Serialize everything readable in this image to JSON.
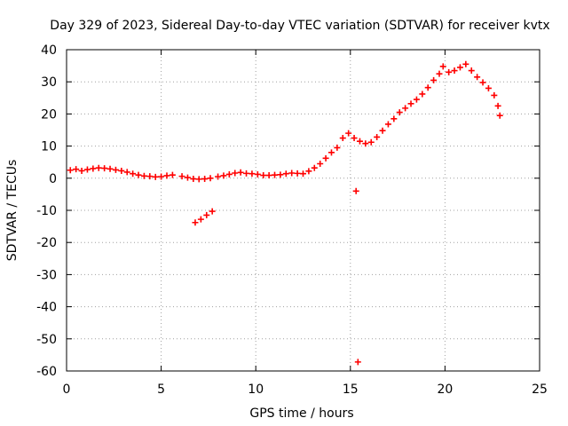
{
  "chart_data": {
    "type": "scatter",
    "title": "Day 329 of 2023, Sidereal Day-to-day VTEC variation (SDTVAR) for receiver kvtx",
    "xlabel": "GPS time / hours",
    "ylabel": "SDTVAR / TECUs",
    "xlim": [
      0,
      25
    ],
    "ylim": [
      -60,
      40
    ],
    "xticks": [
      "0",
      "5",
      "10",
      "15",
      "20",
      "25"
    ],
    "yticks": [
      "40",
      "30",
      "20",
      "10",
      "0",
      "-10",
      "-20",
      "-30",
      "-40",
      "-50",
      "-60"
    ],
    "grid": true,
    "marker": "+",
    "series": [
      {
        "name": "SDTVAR",
        "color": "#ff0000",
        "points": [
          [
            0.2,
            2.5
          ],
          [
            0.5,
            2.8
          ],
          [
            0.8,
            2.3
          ],
          [
            1.1,
            2.7
          ],
          [
            1.4,
            3.0
          ],
          [
            1.7,
            3.2
          ],
          [
            2.0,
            3.1
          ],
          [
            2.3,
            2.9
          ],
          [
            2.6,
            2.6
          ],
          [
            2.9,
            2.3
          ],
          [
            3.2,
            1.9
          ],
          [
            3.5,
            1.4
          ],
          [
            3.8,
            1.0
          ],
          [
            4.1,
            0.7
          ],
          [
            4.4,
            0.6
          ],
          [
            4.7,
            0.4
          ],
          [
            5.0,
            0.5
          ],
          [
            5.3,
            0.8
          ],
          [
            5.6,
            1.0
          ],
          [
            6.1,
            0.6
          ],
          [
            6.4,
            0.2
          ],
          [
            6.7,
            -0.2
          ],
          [
            7.0,
            -0.3
          ],
          [
            7.3,
            -0.2
          ],
          [
            7.6,
            0.0
          ],
          [
            6.8,
            -13.8
          ],
          [
            7.1,
            -12.8
          ],
          [
            7.4,
            -11.5
          ],
          [
            7.7,
            -10.3
          ],
          [
            8.0,
            0.5
          ],
          [
            8.3,
            0.8
          ],
          [
            8.6,
            1.2
          ],
          [
            8.9,
            1.6
          ],
          [
            9.2,
            1.8
          ],
          [
            9.5,
            1.5
          ],
          [
            9.8,
            1.4
          ],
          [
            10.1,
            1.2
          ],
          [
            10.4,
            0.9
          ],
          [
            10.7,
            0.9
          ],
          [
            11.0,
            1.0
          ],
          [
            11.3,
            1.1
          ],
          [
            11.6,
            1.4
          ],
          [
            11.9,
            1.6
          ],
          [
            12.2,
            1.5
          ],
          [
            12.5,
            1.4
          ],
          [
            12.8,
            2.2
          ],
          [
            13.1,
            3.2
          ],
          [
            13.4,
            4.5
          ],
          [
            13.7,
            6.2
          ],
          [
            14.0,
            8.0
          ],
          [
            14.3,
            9.5
          ],
          [
            14.6,
            12.5
          ],
          [
            14.9,
            14.0
          ],
          [
            15.2,
            12.5
          ],
          [
            15.5,
            11.5
          ],
          [
            15.8,
            10.8
          ],
          [
            16.1,
            11.2
          ],
          [
            16.4,
            12.8
          ],
          [
            16.7,
            14.8
          ],
          [
            17.0,
            16.8
          ],
          [
            17.3,
            18.5
          ],
          [
            17.6,
            20.5
          ],
          [
            17.9,
            21.8
          ],
          [
            18.2,
            23.2
          ],
          [
            18.5,
            24.5
          ],
          [
            18.8,
            26.2
          ],
          [
            19.1,
            28.2
          ],
          [
            19.4,
            30.5
          ],
          [
            19.7,
            32.5
          ],
          [
            19.9,
            34.8
          ],
          [
            20.2,
            33.0
          ],
          [
            20.5,
            33.5
          ],
          [
            20.8,
            34.5
          ],
          [
            21.1,
            35.5
          ],
          [
            21.4,
            33.5
          ],
          [
            21.7,
            31.5
          ],
          [
            22.0,
            29.8
          ],
          [
            22.3,
            28.0
          ],
          [
            22.6,
            25.8
          ],
          [
            22.8,
            22.5
          ],
          [
            22.9,
            19.5
          ],
          [
            15.3,
            -4.0
          ],
          [
            15.4,
            -57.2
          ]
        ]
      }
    ]
  }
}
